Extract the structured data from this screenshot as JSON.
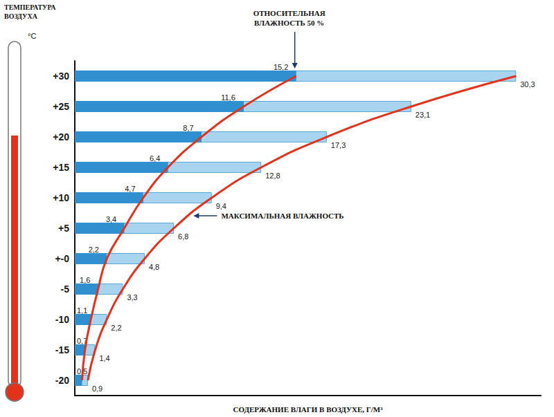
{
  "chart_data": {
    "type": "bar",
    "orientation": "horizontal",
    "ylabel": "ТЕМПЕРАТУРА ВОЗДУХА",
    "y_unit": "°C",
    "xlabel": "СОДЕРЖАНИЕ ВЛАГИ В ВОЗДУХЕ, Г/М³",
    "categories": [
      "+30",
      "+25",
      "+20",
      "+15",
      "+10",
      "+5",
      "+-0",
      "-5",
      "-10",
      "-15",
      "-20"
    ],
    "xlim": [
      0,
      32
    ],
    "tick_labels": "y",
    "grid": false,
    "data_labels": true,
    "series": [
      {
        "name": "МАКСИМАЛЬНАЯ ВЛАЖНОСТЬ",
        "color": "#a8d4f0",
        "values": [
          30.3,
          23.1,
          17.3,
          12.8,
          9.4,
          6.8,
          4.8,
          3.3,
          2.2,
          1.4,
          0.9
        ],
        "value_labels": [
          "30,3",
          "23,1",
          "17,3",
          "12,8",
          "9,4",
          "6,8",
          "4,8",
          "3,3",
          "2,2",
          "1,4",
          "0,9"
        ]
      },
      {
        "name": "ОТНОСИТЕЛЬНАЯ ВЛАЖНОСТЬ 50 %",
        "color": "#2f8fcf",
        "values": [
          15.2,
          11.6,
          8.7,
          6.4,
          4.7,
          3.4,
          2.2,
          1.6,
          1.1,
          0.7,
          0.5
        ],
        "value_labels": [
          "15,2",
          "11,6",
          "8,7",
          "6,4",
          "4,7",
          "3,4",
          "2,2",
          "1,6",
          "1,1",
          "0,7",
          "0,5"
        ]
      }
    ]
  }
}
